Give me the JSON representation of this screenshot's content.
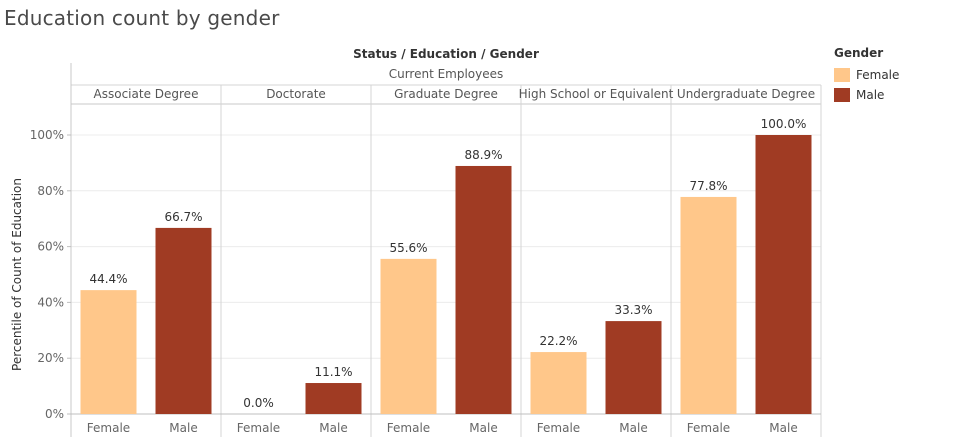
{
  "title": "Education count by gender",
  "colors": {
    "Female": "#FFC78A",
    "Male": "#A03B23"
  },
  "legend": {
    "title": "Gender",
    "items": [
      "Female",
      "Male"
    ]
  },
  "chart_data": {
    "type": "bar",
    "title": "Education count by gender",
    "column_header": "Status / Education / Gender",
    "status": "Current Employees",
    "ylabel": "Percentile of Count of Education",
    "ylim": [
      0,
      100
    ],
    "yticks": [
      0,
      20,
      40,
      60,
      80,
      100
    ],
    "ytick_labels": [
      "0%",
      "20%",
      "40%",
      "60%",
      "80%",
      "100%"
    ],
    "grid": true,
    "legend_position": "right",
    "groups": [
      {
        "name": "Associate Degree",
        "bars": [
          {
            "gender": "Female",
            "value": 44.4,
            "label": "44.4%"
          },
          {
            "gender": "Male",
            "value": 66.7,
            "label": "66.7%"
          }
        ]
      },
      {
        "name": "Doctorate",
        "bars": [
          {
            "gender": "Female",
            "value": 0.0,
            "label": "0.0%"
          },
          {
            "gender": "Male",
            "value": 11.1,
            "label": "11.1%"
          }
        ]
      },
      {
        "name": "Graduate Degree",
        "bars": [
          {
            "gender": "Female",
            "value": 55.6,
            "label": "55.6%"
          },
          {
            "gender": "Male",
            "value": 88.9,
            "label": "88.9%"
          }
        ]
      },
      {
        "name": "High School or Equivalent",
        "bars": [
          {
            "gender": "Female",
            "value": 22.2,
            "label": "22.2%"
          },
          {
            "gender": "Male",
            "value": 33.3,
            "label": "33.3%"
          }
        ]
      },
      {
        "name": "Undergraduate Degree",
        "bars": [
          {
            "gender": "Female",
            "value": 77.8,
            "label": "77.8%"
          },
          {
            "gender": "Male",
            "value": 100.0,
            "label": "100.0%"
          }
        ]
      }
    ]
  }
}
